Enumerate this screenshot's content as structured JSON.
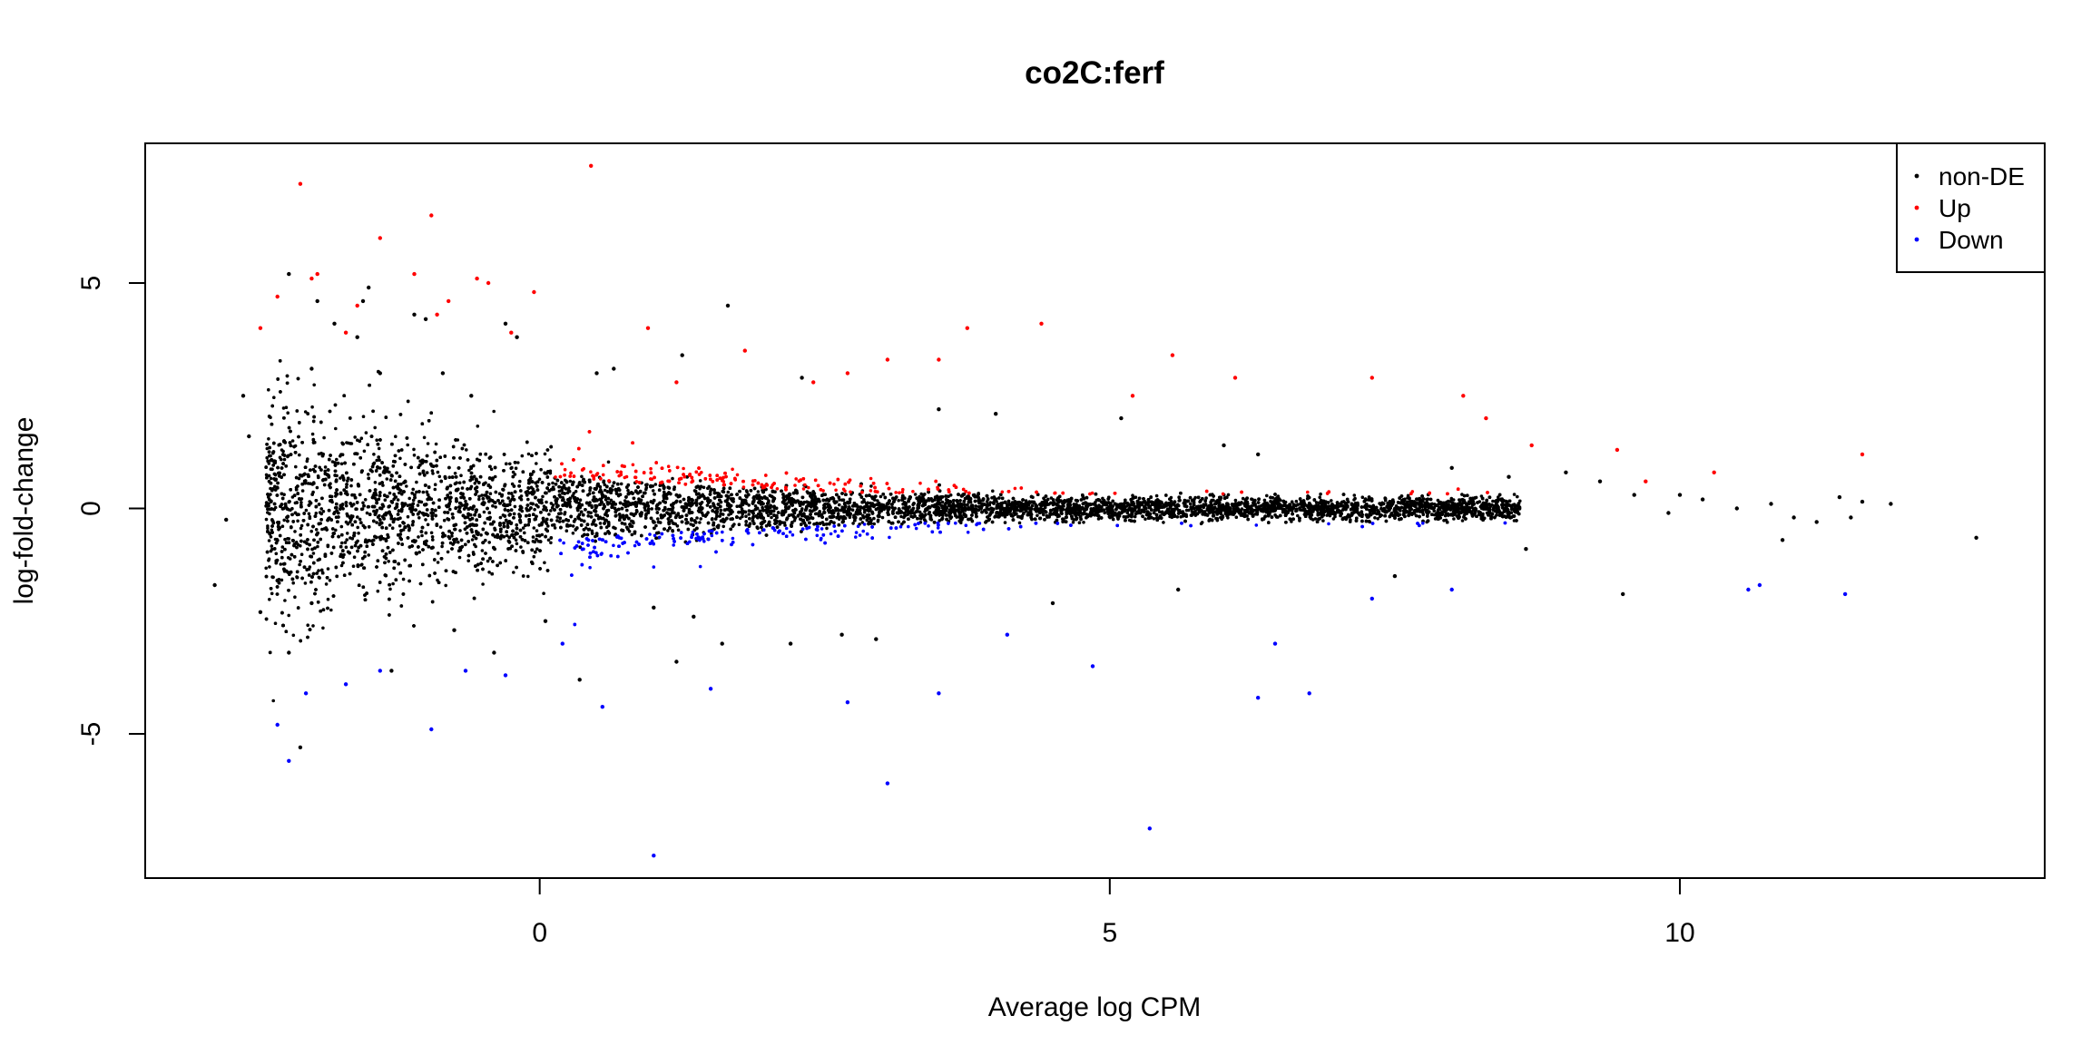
{
  "chart_data": {
    "type": "scatter",
    "title": "co2C:ferf",
    "xlabel": "Average log CPM",
    "ylabel": "log-fold-change",
    "xlim": [
      -3.46,
      13.2
    ],
    "ylim": [
      -8.2,
      8.1
    ],
    "x_ticks": [
      0,
      5,
      10
    ],
    "y_ticks": [
      -5,
      0,
      5
    ],
    "x_tick_labels": [
      "0",
      "5",
      "10"
    ],
    "y_tick_labels": [
      "-5",
      "0",
      "5"
    ],
    "grid": false,
    "legend_position": "top-right",
    "series": [
      {
        "name": "non-DE",
        "color": "#000000",
        "points": [
          [
            -2.85,
            -1.7
          ],
          [
            -2.75,
            -0.25
          ],
          [
            -2.6,
            2.5
          ],
          [
            -2.55,
            1.6
          ],
          [
            -2.45,
            -2.3
          ],
          [
            -2.3,
            -1.6
          ],
          [
            -2.2,
            -3.2
          ],
          [
            -2.1,
            -5.3
          ],
          [
            -2.0,
            -2.1
          ],
          [
            -2.0,
            3.1
          ],
          [
            -2.2,
            5.2
          ],
          [
            -1.95,
            4.6
          ],
          [
            -1.8,
            4.1
          ],
          [
            -1.55,
            4.6
          ],
          [
            -1.5,
            4.9
          ],
          [
            -1.6,
            3.8
          ],
          [
            -1.4,
            3.0
          ],
          [
            -1.3,
            -3.6
          ],
          [
            -1.1,
            4.3
          ],
          [
            -1.0,
            4.2
          ],
          [
            -0.85,
            3.0
          ],
          [
            -0.75,
            -2.7
          ],
          [
            -0.6,
            2.5
          ],
          [
            -0.4,
            -3.2
          ],
          [
            -0.3,
            4.1
          ],
          [
            -0.2,
            3.8
          ],
          [
            0.05,
            -2.5
          ],
          [
            0.35,
            -3.8
          ],
          [
            0.5,
            3.0
          ],
          [
            0.65,
            3.1
          ],
          [
            1.0,
            -2.2
          ],
          [
            1.2,
            -3.4
          ],
          [
            1.25,
            3.4
          ],
          [
            1.35,
            -2.4
          ],
          [
            1.6,
            -3.0
          ],
          [
            1.65,
            4.5
          ],
          [
            2.2,
            -3.0
          ],
          [
            2.3,
            2.9
          ],
          [
            2.65,
            -2.8
          ],
          [
            2.95,
            -2.9
          ],
          [
            3.5,
            2.2
          ],
          [
            4.0,
            2.1
          ],
          [
            4.5,
            -2.1
          ],
          [
            5.1,
            2.0
          ],
          [
            5.6,
            -1.8
          ],
          [
            6.0,
            1.4
          ],
          [
            6.3,
            1.2
          ],
          [
            7.5,
            -1.5
          ],
          [
            8.0,
            0.9
          ],
          [
            8.5,
            0.7
          ],
          [
            8.65,
            -0.9
          ],
          [
            9.0,
            0.8
          ],
          [
            9.3,
            0.6
          ],
          [
            9.5,
            -1.9
          ],
          [
            9.6,
            0.3
          ],
          [
            9.9,
            -0.1
          ],
          [
            10.0,
            0.3
          ],
          [
            10.2,
            0.2
          ],
          [
            10.5,
            0.0
          ],
          [
            10.8,
            0.1
          ],
          [
            10.9,
            -0.7
          ],
          [
            11.0,
            -0.2
          ],
          [
            11.2,
            -0.3
          ],
          [
            11.4,
            0.25
          ],
          [
            11.5,
            -0.2
          ],
          [
            11.6,
            0.15
          ],
          [
            11.85,
            0.1
          ],
          [
            12.6,
            -0.65
          ]
        ]
      },
      {
        "name": "Up",
        "color": "#ff0000",
        "points": [
          [
            -2.45,
            4.0
          ],
          [
            -2.3,
            4.7
          ],
          [
            -2.1,
            7.2
          ],
          [
            -2.0,
            5.1
          ],
          [
            -1.95,
            5.2
          ],
          [
            -1.7,
            3.9
          ],
          [
            -1.6,
            4.5
          ],
          [
            -1.4,
            6.0
          ],
          [
            -1.1,
            5.2
          ],
          [
            -0.95,
            6.5
          ],
          [
            -0.9,
            4.3
          ],
          [
            -0.8,
            4.6
          ],
          [
            -0.55,
            5.1
          ],
          [
            -0.45,
            5.0
          ],
          [
            -0.25,
            3.9
          ],
          [
            -0.05,
            4.8
          ],
          [
            0.45,
            7.6
          ],
          [
            0.95,
            4.0
          ],
          [
            1.2,
            2.8
          ],
          [
            1.8,
            3.5
          ],
          [
            2.4,
            2.8
          ],
          [
            2.7,
            3.0
          ],
          [
            3.05,
            3.3
          ],
          [
            3.5,
            3.3
          ],
          [
            3.75,
            4.0
          ],
          [
            4.4,
            4.1
          ],
          [
            5.2,
            2.5
          ],
          [
            5.55,
            3.4
          ],
          [
            6.1,
            2.9
          ],
          [
            7.3,
            2.9
          ],
          [
            8.1,
            2.5
          ],
          [
            8.3,
            2.0
          ],
          [
            8.7,
            1.4
          ],
          [
            9.45,
            1.3
          ],
          [
            9.7,
            0.6
          ],
          [
            10.3,
            0.8
          ],
          [
            11.6,
            1.2
          ]
        ]
      },
      {
        "name": "Down",
        "color": "#0000ff",
        "points": [
          [
            -2.3,
            -4.8
          ],
          [
            -2.2,
            -5.6
          ],
          [
            -2.05,
            -4.1
          ],
          [
            -1.7,
            -3.9
          ],
          [
            -1.4,
            -3.6
          ],
          [
            -0.95,
            -4.9
          ],
          [
            -0.65,
            -3.6
          ],
          [
            -0.3,
            -3.7
          ],
          [
            0.2,
            -3.0
          ],
          [
            0.55,
            -4.4
          ],
          [
            1.0,
            -7.7
          ],
          [
            1.5,
            -4.0
          ],
          [
            2.7,
            -4.3
          ],
          [
            3.05,
            -6.1
          ],
          [
            3.5,
            -4.1
          ],
          [
            4.1,
            -2.8
          ],
          [
            4.85,
            -3.5
          ],
          [
            5.35,
            -7.1
          ],
          [
            6.3,
            -4.2
          ],
          [
            6.45,
            -3.0
          ],
          [
            6.75,
            -4.1
          ],
          [
            7.3,
            -2.0
          ],
          [
            8.0,
            -1.8
          ],
          [
            10.6,
            -1.8
          ],
          [
            10.7,
            -1.7
          ],
          [
            11.45,
            -1.9
          ]
        ]
      }
    ]
  }
}
